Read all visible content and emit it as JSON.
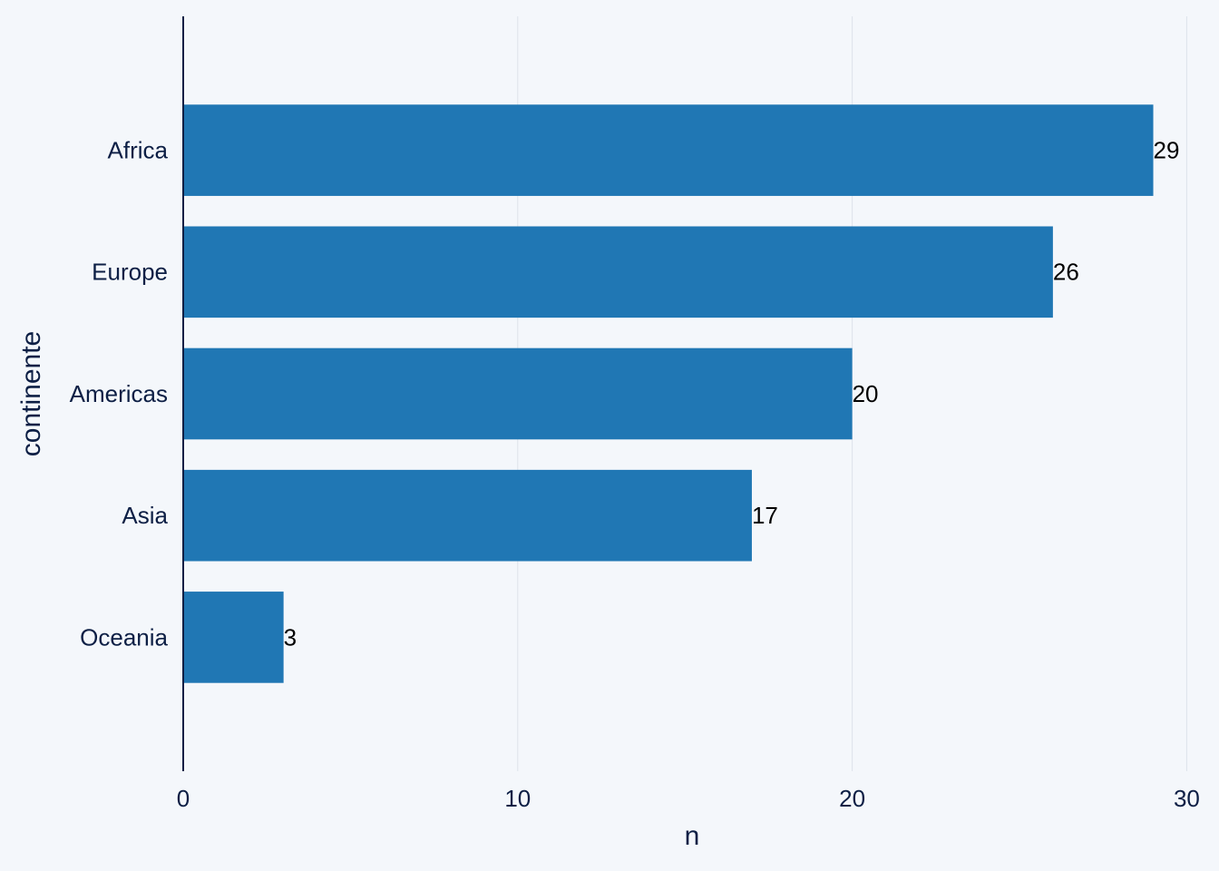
{
  "chart_data": {
    "type": "bar",
    "orientation": "horizontal",
    "x_label": "n",
    "y_label": "continente",
    "categories": [
      "Africa",
      "Europe",
      "Americas",
      "Asia",
      "Oceania"
    ],
    "values": [
      29,
      26,
      20,
      17,
      3
    ],
    "color": "#2077b4",
    "xlim": [
      0,
      30.45
    ],
    "xticks": [
      0,
      10,
      20,
      30
    ],
    "grid": true,
    "data_labels": true
  }
}
